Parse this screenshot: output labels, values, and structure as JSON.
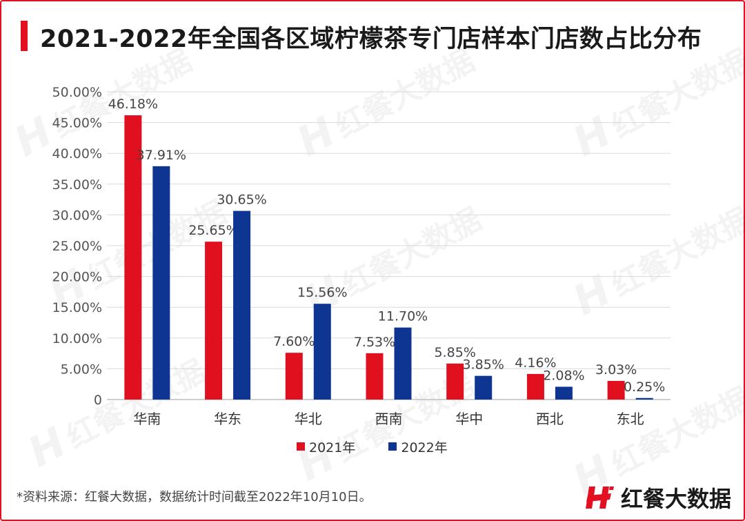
{
  "title": "2021-2022年全国各区域柠檬茶专门店样本门店数占比分布",
  "watermark_text": "红餐大数据",
  "source_note": "*资料来源：红餐大数据，数据统计时间截至2022年10月10日。",
  "brand": {
    "name": "红餐大数据",
    "logo_icon": "hongcan-logo-icon"
  },
  "colors": {
    "accent": "#e21020",
    "series_2021": "#e0101e",
    "series_2022": "#0d3591"
  },
  "chart_data": {
    "type": "bar",
    "title": "2021-2022年全国各区域柠檬茶专门店样本门店数占比分布",
    "xlabel": "",
    "ylabel": "",
    "ylim": [
      0,
      50
    ],
    "y_ticks": [
      "0",
      "5.00%",
      "10.00%",
      "15.00%",
      "20.00%",
      "25.00%",
      "30.00%",
      "35.00%",
      "40.00%",
      "45.00%",
      "50.00%"
    ],
    "grid": true,
    "legend_position": "bottom",
    "categories": [
      "华南",
      "华东",
      "华北",
      "西南",
      "华中",
      "西北",
      "东北"
    ],
    "series": [
      {
        "name": "2021年",
        "color": "#e0101e",
        "values": [
          46.18,
          25.65,
          7.6,
          7.53,
          5.85,
          4.16,
          3.03
        ],
        "labels": [
          "46.18%",
          "25.65%",
          "7.60%",
          "7.53%",
          "5.85%",
          "4.16%",
          "3.03%"
        ]
      },
      {
        "name": "2022年",
        "color": "#0d3591",
        "values": [
          37.91,
          30.65,
          15.56,
          11.7,
          3.85,
          2.08,
          0.25
        ],
        "labels": [
          "37.91%",
          "30.65%",
          "15.56%",
          "11.70%",
          "3.85%",
          "2.08%",
          "0.25%"
        ]
      }
    ]
  }
}
